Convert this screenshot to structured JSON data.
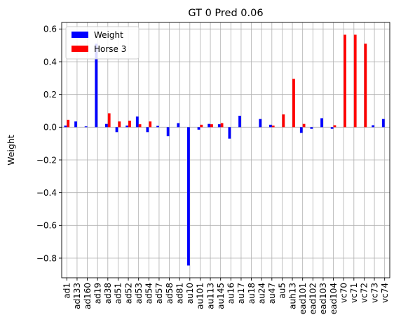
{
  "chart_data": {
    "type": "bar",
    "title": "GT 0 Pred 0.06",
    "xlabel": "",
    "ylabel": "Weight",
    "ylim": [
      -0.92,
      0.64
    ],
    "yticks": [
      0.6,
      0.4,
      0.2,
      0.0,
      -0.2,
      -0.4,
      -0.6,
      -0.8
    ],
    "ytick_labels": [
      "0.6",
      "0.4",
      "0.2",
      "0.0",
      "−0.2",
      "−0.4",
      "−0.6",
      "−0.8"
    ],
    "grid": true,
    "legend_position": "top-left",
    "categories": [
      "ad1",
      "ad133",
      "ad160",
      "ad19",
      "ad38",
      "ad51",
      "ad52",
      "ad53",
      "ad54",
      "ad57",
      "ad58",
      "ad81",
      "au10",
      "au101",
      "au113",
      "au145",
      "au16",
      "au17",
      "au18",
      "au24",
      "au47",
      "au5",
      "auh13",
      "ead101",
      "ead102",
      "ead103",
      "ead104",
      "vc70",
      "vc71",
      "vc72",
      "vc73",
      "vc74"
    ],
    "series": [
      {
        "name": "Weight",
        "color": "#0000ff",
        "values": [
          0.01,
          0.035,
          0.005,
          0.51,
          0.02,
          -0.03,
          0.01,
          0.065,
          -0.03,
          0.008,
          -0.055,
          0.025,
          -0.845,
          -0.015,
          0.02,
          0.018,
          -0.07,
          0.07,
          0.0,
          0.05,
          0.015,
          0.0,
          0.0,
          -0.035,
          -0.01,
          0.055,
          -0.01,
          0.0,
          0.0,
          0.0,
          0.012,
          0.05
        ]
      },
      {
        "name": "Horse 3",
        "color": "#ff0000",
        "values": [
          0.045,
          0.0,
          0.0,
          0.0,
          0.085,
          0.035,
          0.04,
          0.018,
          0.035,
          0.0,
          0.0,
          0.0,
          0.0,
          0.015,
          0.018,
          0.025,
          0.0,
          0.0,
          0.0,
          0.0,
          0.01,
          0.078,
          0.295,
          0.02,
          0.0,
          0.0,
          0.012,
          0.565,
          0.565,
          0.51,
          0.0,
          0.0
        ]
      }
    ]
  }
}
